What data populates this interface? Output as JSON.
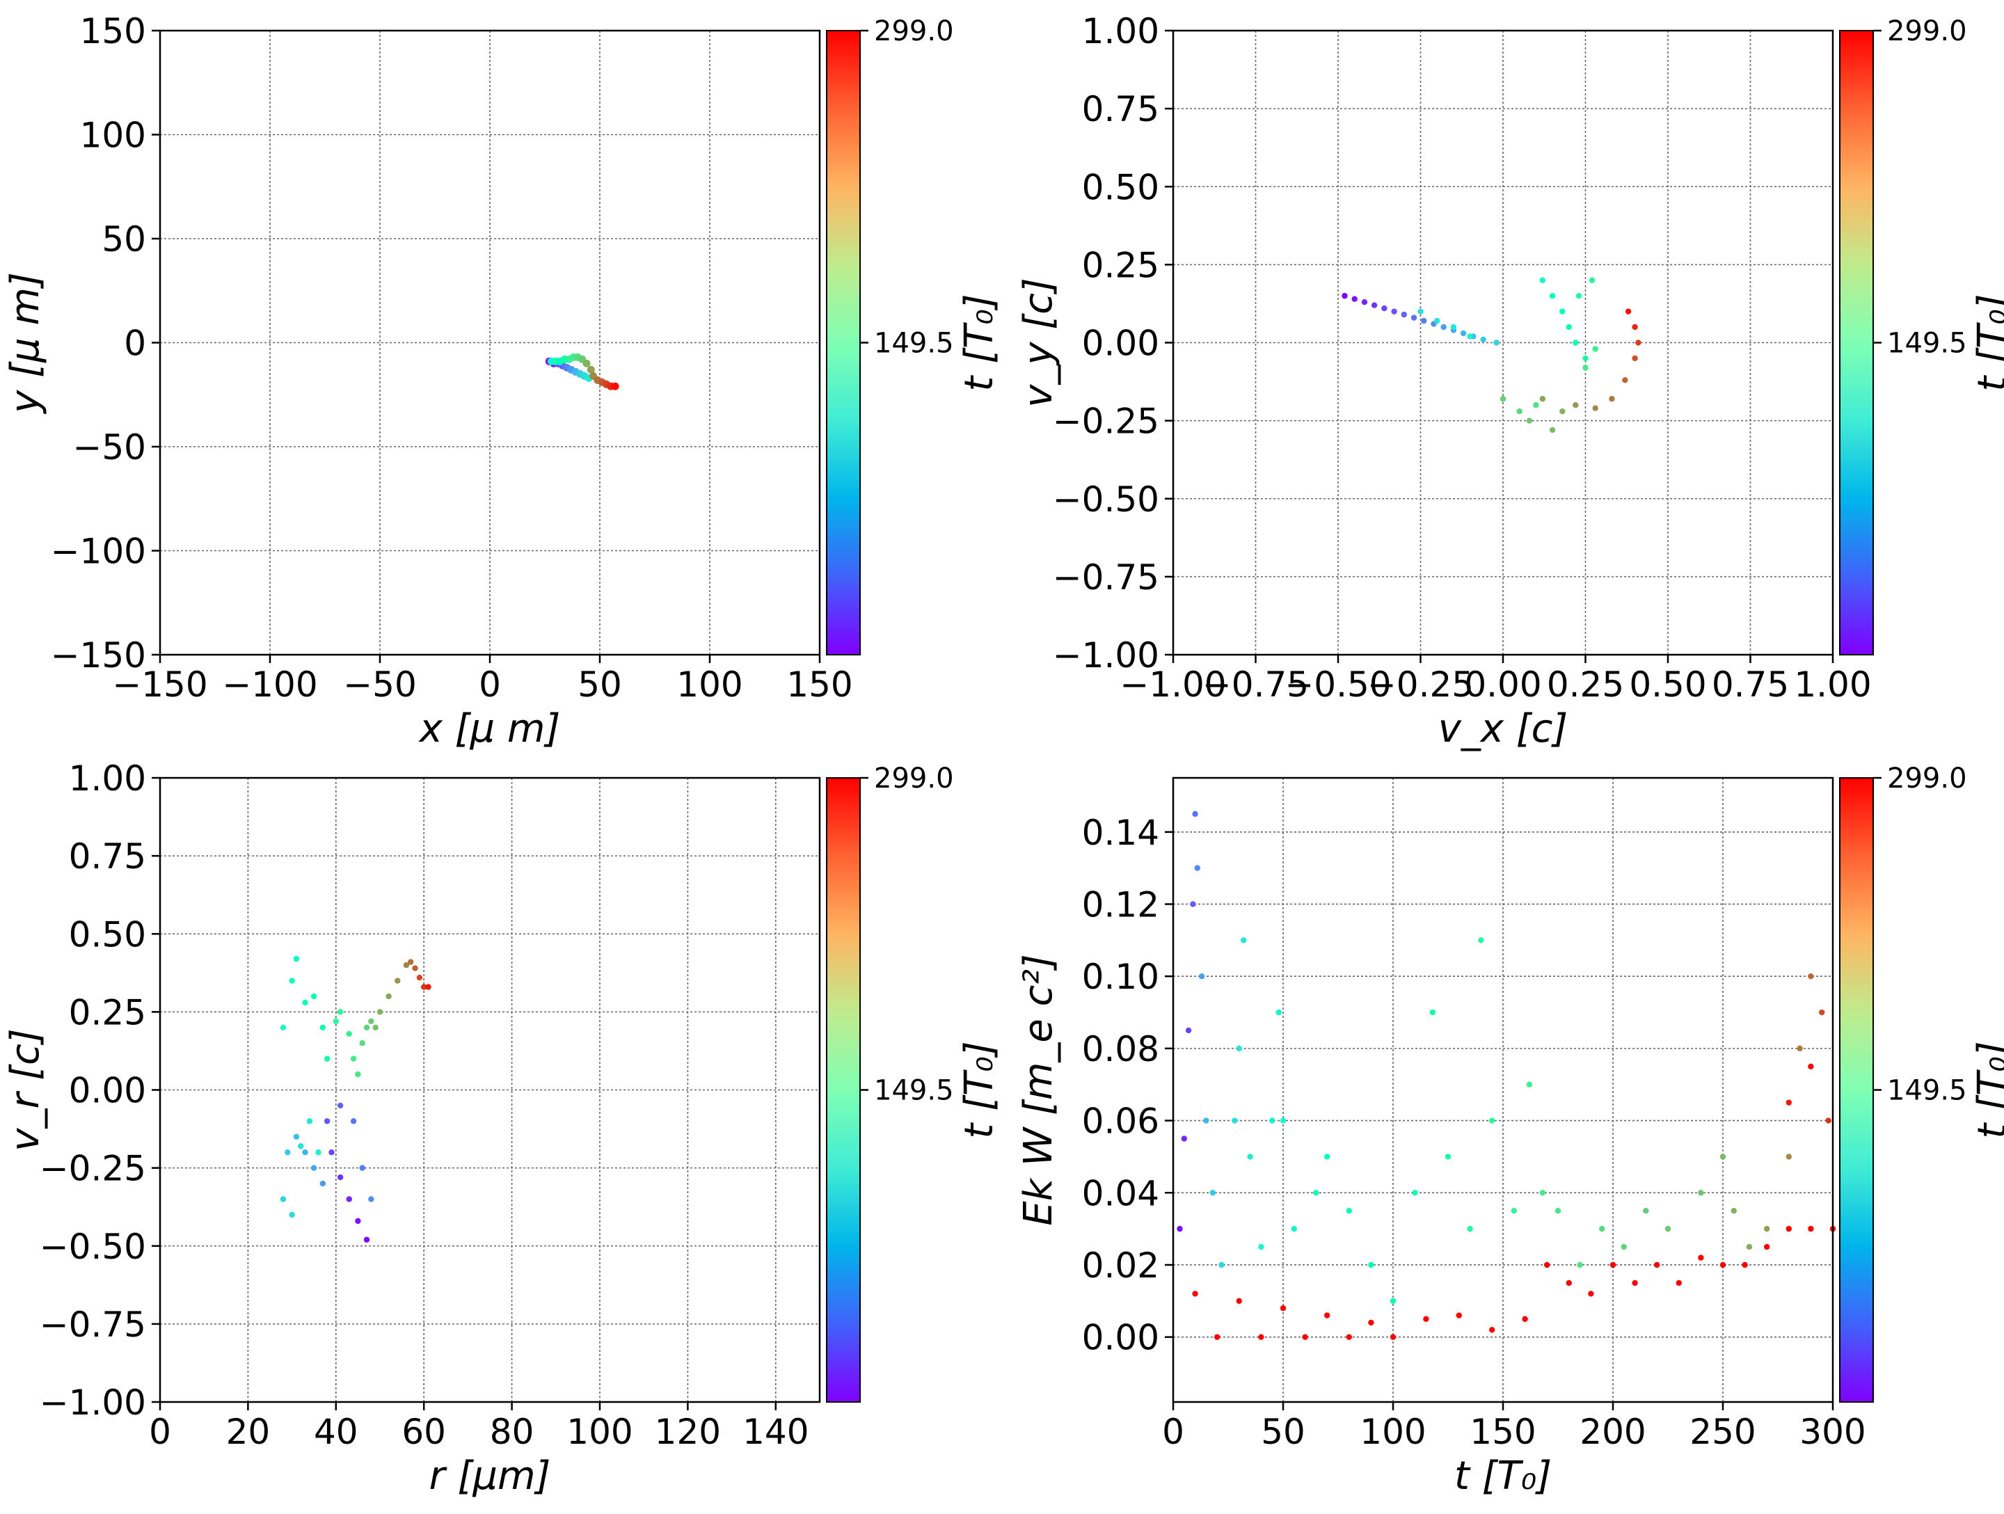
{
  "colorbar": {
    "min": 0,
    "max": 299.0,
    "labels": [
      "149.5",
      "299.0"
    ],
    "label": "t [T₀]",
    "cmap": "rainbow"
  },
  "chart_data": [
    {
      "id": "xy",
      "type": "scatter",
      "xlabel": "x  [μ m]",
      "ylabel": "y  [μ m]",
      "xlim": [
        -150,
        150
      ],
      "ylim": [
        -150,
        150
      ],
      "xticks": [
        -150,
        -100,
        -50,
        0,
        50,
        100,
        150
      ],
      "yticks": [
        -150,
        -100,
        -50,
        0,
        50,
        100,
        150
      ],
      "xtick_labels": [
        "−150",
        "−100",
        "−50",
        "0",
        "50",
        "100",
        "150"
      ],
      "ytick_labels": [
        "−150",
        "−100",
        "−50",
        "0",
        "50",
        "100",
        "150"
      ],
      "grid": true,
      "points": [
        [
          27,
          -9,
          0
        ],
        [
          29,
          -10,
          12
        ],
        [
          31,
          -10,
          25
        ],
        [
          33,
          -11,
          38
        ],
        [
          35,
          -12,
          50
        ],
        [
          37,
          -13,
          62
        ],
        [
          39,
          -14,
          75
        ],
        [
          41,
          -15,
          88
        ],
        [
          43,
          -16,
          100
        ],
        [
          45,
          -17,
          112
        ],
        [
          28,
          -9,
          125
        ],
        [
          30,
          -9,
          138
        ],
        [
          32,
          -9,
          150
        ],
        [
          34,
          -8,
          162
        ],
        [
          36,
          -8,
          175
        ],
        [
          38,
          -7,
          188
        ],
        [
          40,
          -7,
          200
        ],
        [
          42,
          -8,
          212
        ],
        [
          44,
          -10,
          225
        ],
        [
          46,
          -13,
          235
        ],
        [
          47,
          -16,
          245
        ],
        [
          49,
          -18,
          255
        ],
        [
          51,
          -19,
          265
        ],
        [
          53,
          -20,
          275
        ],
        [
          55,
          -21,
          285
        ],
        [
          57,
          -21,
          295
        ]
      ]
    },
    {
      "id": "vxvy",
      "type": "scatter",
      "xlabel": "v_x [c]",
      "ylabel": "v_y [c]",
      "xlim": [
        -1,
        1
      ],
      "ylim": [
        -1,
        1
      ],
      "xticks": [
        -1,
        -0.75,
        -0.5,
        -0.25,
        0,
        0.25,
        0.5,
        0.75,
        1
      ],
      "yticks": [
        -1,
        -0.75,
        -0.5,
        -0.25,
        0,
        0.25,
        0.5,
        0.75,
        1
      ],
      "xtick_labels": [
        "−1.00",
        "−0.75",
        "−0.50",
        "−0.25",
        "0.00",
        "0.25",
        "0.50",
        "0.75",
        "1.00"
      ],
      "ytick_labels": [
        "−1.00",
        "−0.75",
        "−0.50",
        "−0.25",
        "0.00",
        "0.25",
        "0.50",
        "0.75",
        "1.00"
      ],
      "grid": true,
      "points": [
        [
          -0.48,
          0.15,
          2
        ],
        [
          -0.45,
          0.14,
          8
        ],
        [
          -0.42,
          0.13,
          14
        ],
        [
          -0.39,
          0.12,
          20
        ],
        [
          -0.36,
          0.11,
          26
        ],
        [
          -0.33,
          0.1,
          32
        ],
        [
          -0.3,
          0.09,
          38
        ],
        [
          -0.27,
          0.08,
          44
        ],
        [
          -0.24,
          0.07,
          50
        ],
        [
          -0.21,
          0.06,
          56
        ],
        [
          -0.18,
          0.05,
          62
        ],
        [
          -0.15,
          0.04,
          68
        ],
        [
          -0.12,
          0.03,
          74
        ],
        [
          -0.09,
          0.02,
          80
        ],
        [
          -0.06,
          0.01,
          86
        ],
        [
          -0.02,
          0,
          92
        ],
        [
          -0.25,
          0.1,
          98
        ],
        [
          -0.2,
          0.07,
          104
        ],
        [
          -0.15,
          0.05,
          110
        ],
        [
          -0.1,
          0.02,
          116
        ],
        [
          0.12,
          0.2,
          130
        ],
        [
          0.15,
          0.15,
          138
        ],
        [
          0.18,
          0.1,
          145
        ],
        [
          0.2,
          0.05,
          152
        ],
        [
          0.22,
          0,
          158
        ],
        [
          0.25,
          -0.05,
          164
        ],
        [
          0.23,
          0.15,
          170
        ],
        [
          0.27,
          0.2,
          176
        ],
        [
          0.28,
          -0.02,
          182
        ],
        [
          0.25,
          -0.08,
          188
        ],
        [
          0.1,
          -0.2,
          195
        ],
        [
          0.05,
          -0.22,
          202
        ],
        [
          0,
          -0.18,
          208
        ],
        [
          0.08,
          -0.25,
          214
        ],
        [
          0.15,
          -0.28,
          220
        ],
        [
          0.18,
          -0.22,
          226
        ],
        [
          0.12,
          -0.18,
          232
        ],
        [
          0.22,
          -0.2,
          238
        ],
        [
          0.28,
          -0.21,
          245
        ],
        [
          0.33,
          -0.18,
          252
        ],
        [
          0.37,
          -0.12,
          260
        ],
        [
          0.4,
          -0.05,
          268
        ],
        [
          0.41,
          0,
          276
        ],
        [
          0.4,
          0.05,
          284
        ],
        [
          0.38,
          0.1,
          292
        ]
      ]
    },
    {
      "id": "rvr",
      "type": "scatter",
      "xlabel": "r [μm]",
      "ylabel": "v_r [c]",
      "xlim": [
        0,
        150
      ],
      "ylim": [
        -1,
        1
      ],
      "xticks": [
        0,
        20,
        40,
        60,
        80,
        100,
        120,
        140
      ],
      "yticks": [
        -1,
        -0.75,
        -0.5,
        -0.25,
        0,
        0.25,
        0.5,
        0.75,
        1
      ],
      "xtick_labels": [
        "0",
        "20",
        "40",
        "60",
        "80",
        "100",
        "120",
        "140"
      ],
      "ytick_labels": [
        "−1.00",
        "−0.75",
        "−0.50",
        "−0.25",
        "0.00",
        "0.25",
        "0.50",
        "0.75",
        "1.00"
      ],
      "grid": true,
      "points": [
        [
          47,
          -0.48,
          3
        ],
        [
          45,
          -0.42,
          8
        ],
        [
          43,
          -0.35,
          14
        ],
        [
          41,
          -0.28,
          20
        ],
        [
          39,
          -0.2,
          26
        ],
        [
          38,
          -0.1,
          32
        ],
        [
          41,
          -0.05,
          38
        ],
        [
          44,
          -0.1,
          44
        ],
        [
          46,
          -0.25,
          50
        ],
        [
          48,
          -0.35,
          56
        ],
        [
          37,
          -0.3,
          62
        ],
        [
          35,
          -0.25,
          68
        ],
        [
          33,
          -0.2,
          74
        ],
        [
          31,
          -0.15,
          80
        ],
        [
          29,
          -0.2,
          86
        ],
        [
          28,
          -0.35,
          92
        ],
        [
          30,
          -0.4,
          98
        ],
        [
          32,
          -0.18,
          104
        ],
        [
          34,
          -0.1,
          110
        ],
        [
          36,
          -0.2,
          116
        ],
        [
          28,
          0.2,
          128
        ],
        [
          30,
          0.35,
          134
        ],
        [
          31,
          0.42,
          140
        ],
        [
          33,
          0.28,
          146
        ],
        [
          35,
          0.3,
          152
        ],
        [
          37,
          0.2,
          158
        ],
        [
          38,
          0.1,
          164
        ],
        [
          40,
          0.22,
          170
        ],
        [
          41,
          0.25,
          176
        ],
        [
          43,
          0.18,
          182
        ],
        [
          44,
          0.1,
          188
        ],
        [
          45,
          0.05,
          194
        ],
        [
          46,
          0.15,
          200
        ],
        [
          47,
          0.2,
          206
        ],
        [
          48,
          0.22,
          212
        ],
        [
          49,
          0.2,
          218
        ],
        [
          50,
          0.25,
          224
        ],
        [
          52,
          0.3,
          232
        ],
        [
          54,
          0.35,
          240
        ],
        [
          56,
          0.4,
          248
        ],
        [
          57,
          0.41,
          256
        ],
        [
          58,
          0.39,
          264
        ],
        [
          59,
          0.36,
          272
        ],
        [
          60,
          0.33,
          280
        ],
        [
          61,
          0.33,
          290
        ]
      ]
    },
    {
      "id": "ekt",
      "type": "scatter",
      "xlabel": "t [T₀]",
      "ylabel": "Ek W [m_e c²]",
      "xlim": [
        0,
        300
      ],
      "ylim": [
        -0.018,
        0.155
      ],
      "xticks": [
        0,
        50,
        100,
        150,
        200,
        250,
        300
      ],
      "yticks": [
        0,
        0.02,
        0.04,
        0.06,
        0.08,
        0.1,
        0.12,
        0.14
      ],
      "xtick_labels": [
        "0",
        "50",
        "100",
        "150",
        "200",
        "250",
        "300"
      ],
      "ytick_labels": [
        "0.00",
        "0.02",
        "0.04",
        "0.06",
        "0.08",
        "0.10",
        "0.12",
        "0.14"
      ],
      "grid": true,
      "points": [
        [
          3,
          0.03,
          5
        ],
        [
          5,
          0.055,
          15
        ],
        [
          7,
          0.085,
          25
        ],
        [
          9,
          0.12,
          35
        ],
        [
          10,
          0.145,
          45
        ],
        [
          11,
          0.13,
          55
        ],
        [
          13,
          0.1,
          65
        ],
        [
          15,
          0.06,
          75
        ],
        [
          18,
          0.04,
          85
        ],
        [
          22,
          0.02,
          95
        ],
        [
          28,
          0.06,
          100
        ],
        [
          30,
          0.08,
          105
        ],
        [
          32,
          0.11,
          110
        ],
        [
          35,
          0.05,
          115
        ],
        [
          40,
          0.025,
          120
        ],
        [
          45,
          0.06,
          122
        ],
        [
          48,
          0.09,
          125
        ],
        [
          50,
          0.06,
          128
        ],
        [
          55,
          0.03,
          132
        ],
        [
          65,
          0.04,
          138
        ],
        [
          70,
          0.05,
          142
        ],
        [
          80,
          0.035,
          146
        ],
        [
          90,
          0.02,
          150
        ],
        [
          100,
          0.01,
          152
        ],
        [
          110,
          0.04,
          156
        ],
        [
          118,
          0.09,
          160
        ],
        [
          125,
          0.05,
          164
        ],
        [
          135,
          0.03,
          168
        ],
        [
          140,
          0.11,
          172
        ],
        [
          145,
          0.06,
          176
        ],
        [
          155,
          0.035,
          180
        ],
        [
          162,
          0.07,
          184
        ],
        [
          168,
          0.04,
          188
        ],
        [
          175,
          0.035,
          192
        ],
        [
          185,
          0.02,
          196
        ],
        [
          195,
          0.03,
          200
        ],
        [
          205,
          0.025,
          204
        ],
        [
          215,
          0.035,
          208
        ],
        [
          225,
          0.03,
          212
        ],
        [
          240,
          0.04,
          216
        ],
        [
          250,
          0.05,
          220
        ],
        [
          255,
          0.035,
          224
        ],
        [
          262,
          0.025,
          228
        ],
        [
          270,
          0.03,
          236
        ],
        [
          280,
          0.05,
          244
        ],
        [
          285,
          0.08,
          252
        ],
        [
          290,
          0.1,
          260
        ],
        [
          295,
          0.09,
          270
        ],
        [
          298,
          0.06,
          280
        ],
        [
          280,
          0.065,
          290
        ],
        [
          290,
          0.075,
          296
        ],
        [
          10,
          0.012,
          298
        ],
        [
          20,
          0,
          299
        ],
        [
          30,
          0.01,
          299
        ],
        [
          40,
          0,
          299
        ],
        [
          50,
          0.008,
          299
        ],
        [
          60,
          0,
          299
        ],
        [
          70,
          0.006,
          299
        ],
        [
          80,
          0,
          299
        ],
        [
          90,
          0.004,
          299
        ],
        [
          100,
          0,
          299
        ],
        [
          115,
          0.005,
          299
        ],
        [
          130,
          0.006,
          299
        ],
        [
          145,
          0.002,
          299
        ],
        [
          160,
          0.005,
          299
        ],
        [
          170,
          0.02,
          299
        ],
        [
          180,
          0.015,
          299
        ],
        [
          190,
          0.012,
          299
        ],
        [
          200,
          0.02,
          299
        ],
        [
          210,
          0.015,
          299
        ],
        [
          220,
          0.02,
          299
        ],
        [
          230,
          0.015,
          299
        ],
        [
          240,
          0.022,
          299
        ],
        [
          250,
          0.02,
          299
        ],
        [
          260,
          0.02,
          299
        ],
        [
          270,
          0.025,
          299
        ],
        [
          280,
          0.03,
          299
        ],
        [
          290,
          0.03,
          299
        ],
        [
          300,
          0.03,
          299
        ]
      ]
    }
  ]
}
